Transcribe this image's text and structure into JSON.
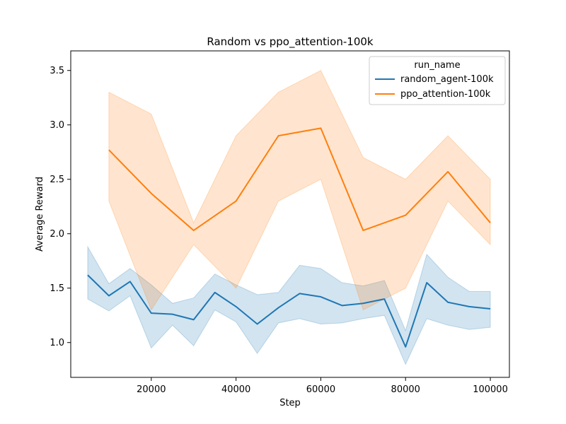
{
  "chart_data": {
    "type": "line",
    "title": "Random vs ppo_attention-100k",
    "xlabel": "Step",
    "ylabel": "Average Reward",
    "xlim": [
      1000,
      104500
    ],
    "ylim": [
      0.68,
      3.68
    ],
    "xticks": [
      20000,
      40000,
      60000,
      80000,
      100000
    ],
    "yticks": [
      1.0,
      1.5,
      2.0,
      2.5,
      3.0,
      3.5
    ],
    "xtick_labels": [
      "20000",
      "40000",
      "60000",
      "80000",
      "100000"
    ],
    "ytick_labels": [
      "1.0",
      "1.5",
      "2.0",
      "2.5",
      "3.0",
      "3.5"
    ],
    "grid": false,
    "legend": {
      "title": "run_name",
      "placement": "top-right"
    },
    "series": [
      {
        "name": "random_agent-100k",
        "color": "#1f77b4",
        "x": [
          5000,
          10000,
          15000,
          20000,
          25000,
          30000,
          35000,
          40000,
          45000,
          50000,
          55000,
          60000,
          65000,
          70000,
          75000,
          80000,
          85000,
          90000,
          95000,
          100000
        ],
        "y": [
          1.62,
          1.43,
          1.56,
          1.27,
          1.26,
          1.21,
          1.46,
          1.33,
          1.17,
          1.32,
          1.45,
          1.42,
          1.34,
          1.36,
          1.4,
          0.96,
          1.55,
          1.37,
          1.33,
          1.31
        ],
        "y_lower": [
          1.4,
          1.29,
          1.43,
          0.95,
          1.16,
          0.97,
          1.3,
          1.19,
          0.9,
          1.18,
          1.22,
          1.17,
          1.18,
          1.22,
          1.25,
          0.8,
          1.22,
          1.16,
          1.12,
          1.14
        ],
        "y_upper": [
          1.88,
          1.54,
          1.68,
          1.53,
          1.36,
          1.41,
          1.63,
          1.53,
          1.44,
          1.46,
          1.71,
          1.68,
          1.55,
          1.52,
          1.57,
          1.11,
          1.81,
          1.6,
          1.47,
          1.47
        ]
      },
      {
        "name": "ppo_attention-100k",
        "color": "#ff7f0e",
        "x": [
          10000,
          20000,
          30000,
          40000,
          50000,
          60000,
          70000,
          80000,
          90000,
          100000
        ],
        "y": [
          2.77,
          2.37,
          2.03,
          2.3,
          2.9,
          2.97,
          2.03,
          2.17,
          2.57,
          2.1
        ],
        "y_lower": [
          2.3,
          1.3,
          1.9,
          1.5,
          2.3,
          2.5,
          1.3,
          1.5,
          2.3,
          1.9
        ],
        "y_upper": [
          3.3,
          3.1,
          2.1,
          2.9,
          3.3,
          3.5,
          2.7,
          2.5,
          2.9,
          2.5
        ]
      }
    ]
  }
}
